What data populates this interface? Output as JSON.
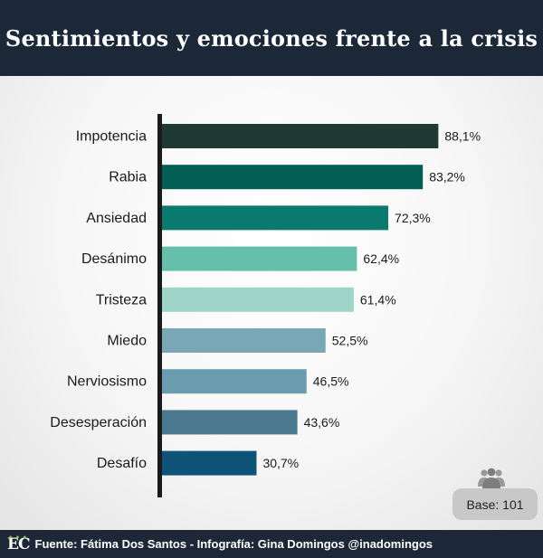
{
  "header": {
    "title": "Sentimientos y emociones frente a la crisis"
  },
  "chart_data": {
    "type": "bar",
    "orientation": "horizontal",
    "categories": [
      "Impotencia",
      "Rabia",
      "Ansiedad",
      "Desánimo",
      "Tristeza",
      "Miedo",
      "Nerviosismo",
      "Desesperación",
      "Desafío"
    ],
    "values": [
      88.1,
      83.2,
      72.3,
      62.4,
      61.4,
      52.5,
      46.5,
      43.6,
      30.7
    ],
    "value_labels": [
      "88,1%",
      "83,2%",
      "72,3%",
      "62,4%",
      "61,4%",
      "52,5%",
      "46,5%",
      "43,6%",
      "30,7%"
    ],
    "bar_colors": [
      "#1f3a32",
      "#035f55",
      "#0a7a6e",
      "#66bfaa",
      "#9fd5c8",
      "#7aa7b5",
      "#6b9db0",
      "#4b7990",
      "#0f5478"
    ],
    "xlim": [
      0,
      100
    ],
    "grid": false,
    "legend": "none"
  },
  "badge": {
    "label": "Base: 101",
    "icon": "people-icon"
  },
  "footer": {
    "logo": "EC",
    "source": "Fuente: Fátima Dos Santos - Infografía: Gina Domingos @inadomingos"
  }
}
